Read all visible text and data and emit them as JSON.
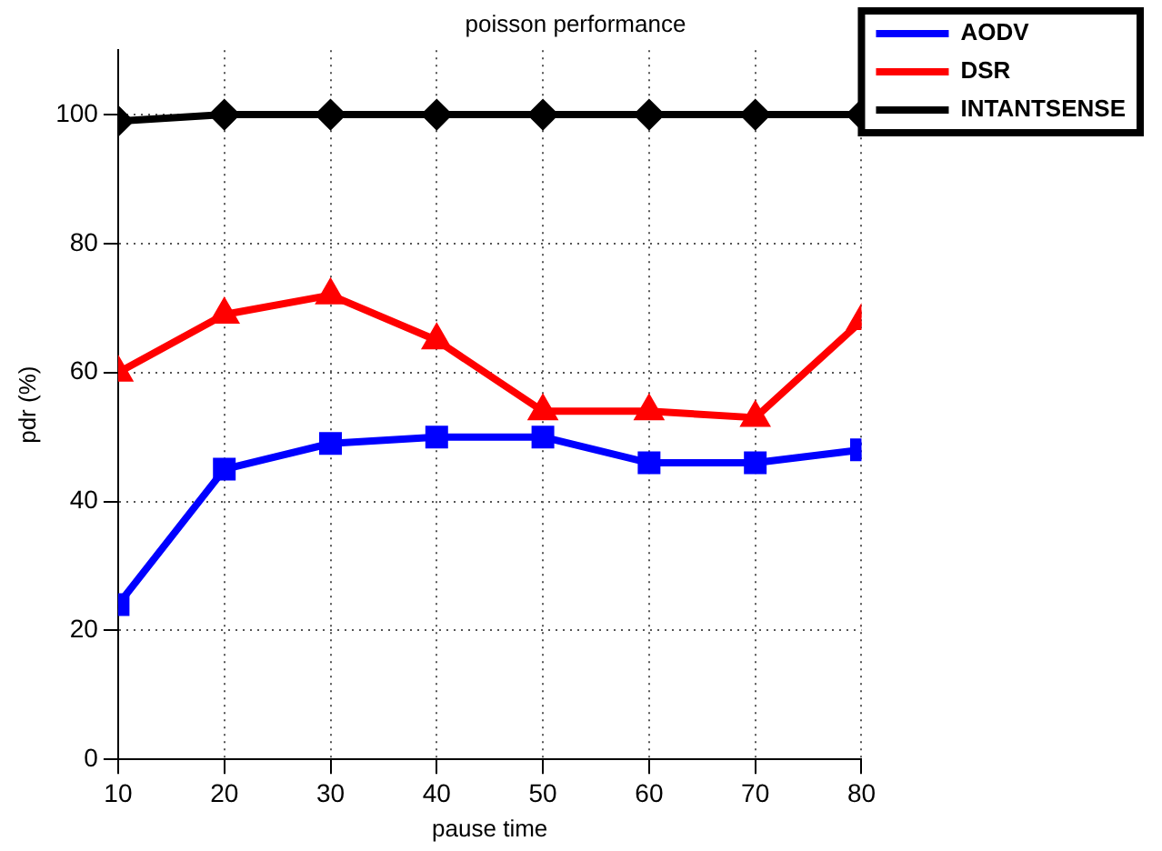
{
  "chart_data": {
    "type": "line",
    "title": "poisson performance",
    "xlabel": "pause time",
    "ylabel": "pdr (%)",
    "x": [
      10,
      20,
      30,
      40,
      50,
      60,
      70,
      80
    ],
    "series": [
      {
        "name": "AODV",
        "color": "#0000ff",
        "marker": "square",
        "values": [
          24,
          45,
          49,
          50,
          50,
          46,
          46,
          48
        ]
      },
      {
        "name": "DSR",
        "color": "#ff0000",
        "marker": "triangle",
        "values": [
          60,
          69,
          72,
          65,
          54,
          54,
          53,
          68
        ]
      },
      {
        "name": "INTANTSENSE",
        "color": "#000000",
        "marker": "diamond",
        "values": [
          99,
          100,
          100,
          100,
          100,
          100,
          100,
          100
        ]
      }
    ],
    "xlim": [
      10,
      80
    ],
    "xticks": [
      10,
      20,
      30,
      40,
      50,
      60,
      70,
      80
    ],
    "ylim": [
      0,
      110
    ],
    "yticks": [
      0,
      20,
      40,
      60,
      80,
      100
    ],
    "grid": true,
    "legend": "top right",
    "line_style": "solid"
  }
}
